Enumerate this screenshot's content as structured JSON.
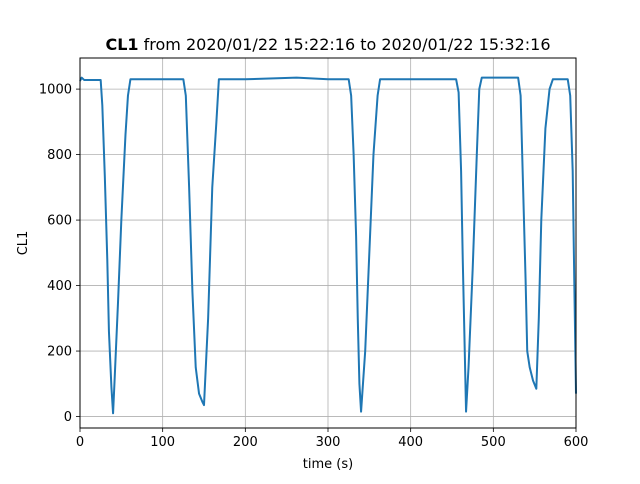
{
  "colors": {
    "series": "#1f77b4",
    "grid": "#b0b0b0",
    "axes": "#000000",
    "background": "#ffffff"
  },
  "title": {
    "bold": "CL1",
    "rest": " from 2020/01/22 15:22:16 to 2020/01/22 15:32:16"
  },
  "chart_data": {
    "type": "line",
    "xlabel": "time (s)",
    "ylabel": "CL1",
    "xlim": [
      0,
      600
    ],
    "ylim": [
      -35,
      1095
    ],
    "grid": true,
    "legend": "none",
    "x_ticks": [
      0,
      100,
      200,
      300,
      400,
      500,
      600
    ],
    "y_ticks": [
      0,
      200,
      400,
      600,
      800,
      1000
    ],
    "series": [
      {
        "x": [
          0,
          2,
          5,
          25,
          27,
          30,
          33,
          35,
          38,
          40,
          42,
          46,
          50,
          55,
          58,
          61,
          90,
          125,
          128,
          132,
          136,
          140,
          144,
          148,
          150,
          155,
          160,
          165,
          168,
          200,
          262,
          300,
          325,
          328,
          331,
          334,
          336,
          338,
          340,
          345,
          350,
          355,
          360,
          363,
          366,
          400,
          455,
          458,
          461,
          463,
          465,
          467,
          470,
          475,
          480,
          483,
          486,
          500,
          530,
          533,
          536,
          539,
          541,
          544,
          548,
          552,
          555,
          558,
          563,
          568,
          572,
          580,
          590,
          593,
          596,
          598,
          600
        ],
        "y": [
          1025,
          1035,
          1028,
          1028,
          950,
          735,
          480,
          260,
          90,
          10,
          120,
          350,
          600,
          860,
          980,
          1030,
          1030,
          1030,
          980,
          700,
          380,
          150,
          70,
          45,
          35,
          300,
          700,
          900,
          1030,
          1030,
          1035,
          1030,
          1030,
          980,
          800,
          550,
          300,
          100,
          15,
          200,
          500,
          800,
          980,
          1030,
          1030,
          1030,
          1030,
          990,
          750,
          480,
          250,
          15,
          150,
          450,
          800,
          1000,
          1035,
          1035,
          1035,
          980,
          700,
          420,
          200,
          150,
          110,
          85,
          300,
          600,
          880,
          1000,
          1030,
          1030,
          1030,
          980,
          750,
          400,
          70
        ]
      }
    ]
  }
}
